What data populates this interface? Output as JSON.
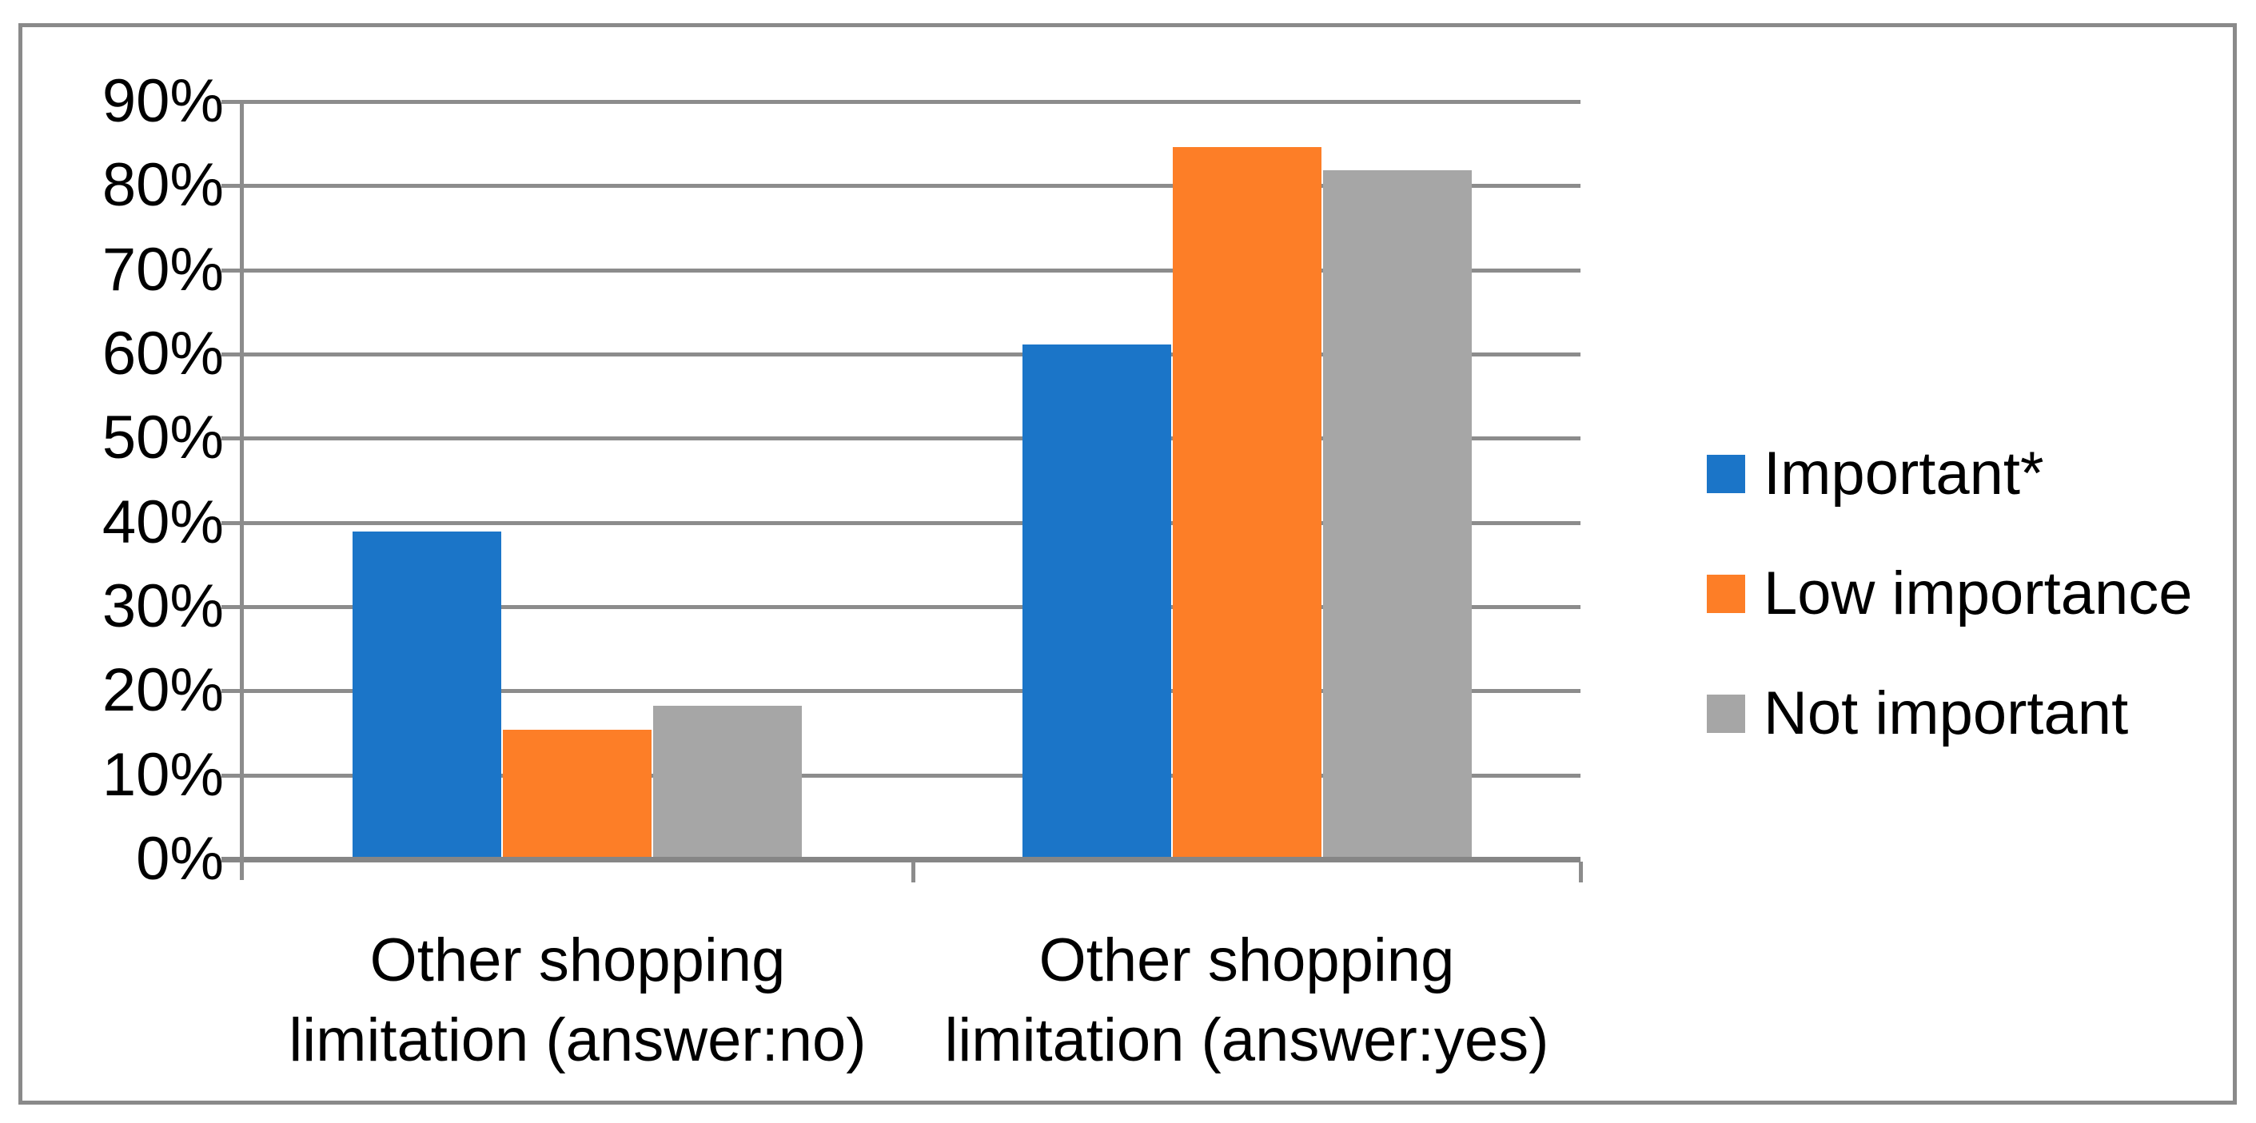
{
  "chart_data": {
    "type": "bar",
    "title": "",
    "categories": [
      "Other shopping limitation (answer:no)",
      "Other shopping limitation (answer:yes)"
    ],
    "category_label_lines": [
      [
        "Other shopping",
        "limitation (answer:no)"
      ],
      [
        "Other shopping",
        "limitation (answer:yes)"
      ]
    ],
    "series": [
      {
        "name": "Important*",
        "color": "#1b75c8",
        "values": [
          38.9,
          61.1
        ]
      },
      {
        "name": "Low importance",
        "color": "#fd7e27",
        "values": [
          15.4,
          84.6
        ]
      },
      {
        "name": "Not important",
        "color": "#a6a6a6",
        "values": [
          18.2,
          81.8
        ]
      }
    ],
    "xlabel": "",
    "ylabel": "",
    "y_axis": {
      "min": 0,
      "max": 90,
      "step": 10,
      "tick_labels": [
        "0%",
        "10%",
        "20%",
        "30%",
        "40%",
        "50%",
        "60%",
        "70%",
        "80%",
        "90%"
      ]
    },
    "grid": true,
    "legend_position": "right",
    "colors": {
      "grid_line": "#8c8c8c",
      "axis_line": "#868686",
      "frame_border": "#8a8a8a",
      "background": "#ffffff",
      "text": "#000000"
    }
  }
}
